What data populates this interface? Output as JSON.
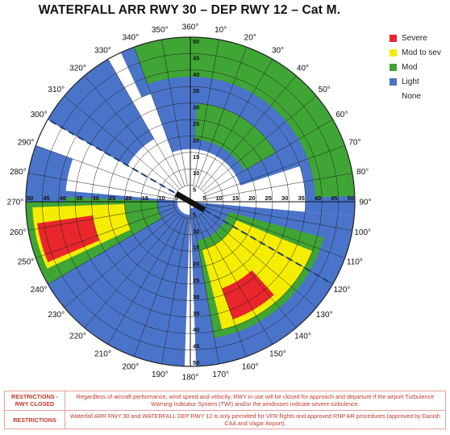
{
  "title": "WATERFALL ARR RWY 30 – DEP RWY 12 – Cat M.",
  "legend": [
    {
      "label": "Severe",
      "color": "#e8262b"
    },
    {
      "label": "Mod to sev",
      "color": "#f5ed00"
    },
    {
      "label": "Mod",
      "color": "#3fa535"
    },
    {
      "label": "Light",
      "color": "#4a74c9"
    },
    {
      "label": "None",
      "color": "none"
    }
  ],
  "rose": {
    "bearings": [
      "360°",
      "10°",
      "20°",
      "30°",
      "40°",
      "50°",
      "60°",
      "70°",
      "80°",
      "90°",
      "100°",
      "110°",
      "120°",
      "130°",
      "140°",
      "150°",
      "160°",
      "170°",
      "180°",
      "190°",
      "200°",
      "210°",
      "220°",
      "230°",
      "240°",
      "250°",
      "260°",
      "270°",
      "280°",
      "290°",
      "300°",
      "310°",
      "320°",
      "330°",
      "340°",
      "350°"
    ],
    "ring_labels": [
      "5",
      "10",
      "15",
      "20",
      "25",
      "30",
      "35",
      "40",
      "45",
      "50"
    ],
    "runway_heading": "120/300"
  },
  "restrictions": [
    {
      "label": "RESTRICTIONS - RWY CLOSED",
      "text": "Regardless of aircraft performance, wind speed and velocity, RWY in use will be closed for approach and departure if the airport Turbulence Warning Indicator System (TWI) and/or the windroses indicate severe turbulence."
    },
    {
      "label": "RESTRICTIONS",
      "text": "Waterfall ARR RWY 30 and WATERFALL DEP RWY 12 is only permitted for VFR flights and approved RNP AR procedures (approved by Danish CAA and Vagar Airport)."
    }
  ]
}
